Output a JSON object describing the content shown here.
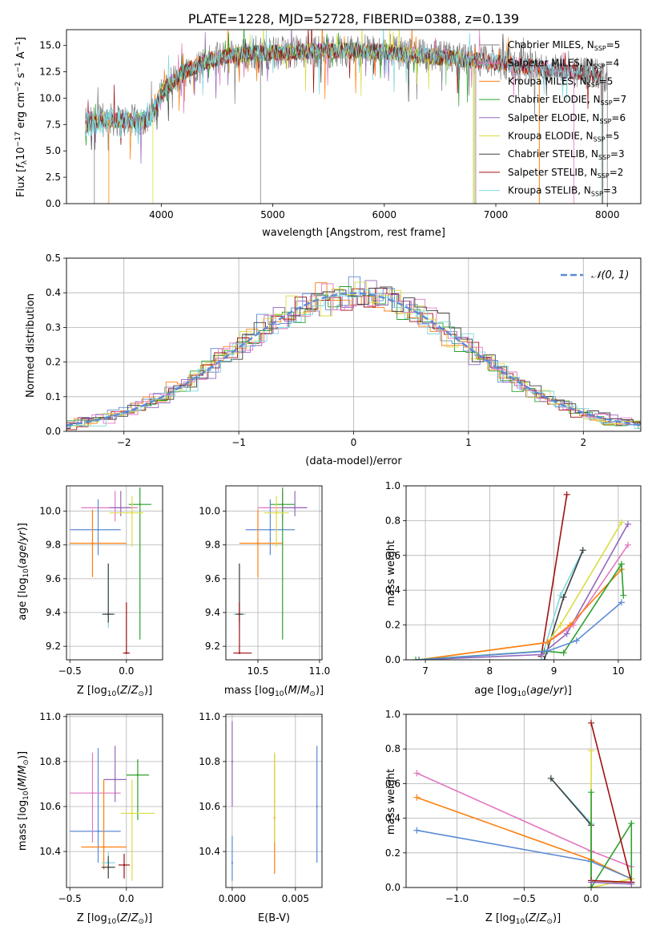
{
  "chart_data": [
    {
      "id": "spectrum",
      "type": "line",
      "title": "PLATE=1228, MJD=52728, FIBERID=0388, z=0.139",
      "xlabel": "wavelength [Angstrom, rest frame]",
      "ylabel": "Flux [f_λ10^-17 erg cm^-2 s^-1 A^-1]",
      "xlim": [
        3150,
        8300
      ],
      "ylim": [
        0,
        16.5
      ],
      "xticks": [
        4000,
        5000,
        6000,
        7000,
        8000
      ],
      "yticks": [
        0.0,
        2.5,
        5.0,
        7.5,
        10.0,
        12.5,
        15.0
      ],
      "grid": false,
      "legend_position": "upper-right",
      "series": [
        {
          "name": "Chabrier MILES, N_SSP=5",
          "color": "#808080",
          "label": {
            "pre": "Chabrier MILES, N",
            "sub": "SSP",
            "post": "=5"
          }
        },
        {
          "name": "Salpeter MILES, N_SSP=4",
          "color": "#e377c2",
          "label": {
            "pre": "Salpeter MILES, N",
            "sub": "SSP",
            "post": "=4"
          }
        },
        {
          "name": "Kroupa MILES, N_SSP=5",
          "color": "#ff7f0e",
          "label": {
            "pre": "Kroupa MILES, N",
            "sub": "SSP",
            "post": "=5"
          }
        },
        {
          "name": "Chabrier ELODIE, N_SSP=7",
          "color": "#2ca02c",
          "label": {
            "pre": "Chabrier ELODIE, N",
            "sub": "SSP",
            "post": "=7"
          }
        },
        {
          "name": "Salpeter ELODIE, N_SSP=6",
          "color": "#9467bd",
          "label": {
            "pre": "Salpeter ELODIE, N",
            "sub": "SSP",
            "post": "=6"
          }
        },
        {
          "name": "Kroupa ELODIE, N_SSP=5",
          "color": "#dbdb44",
          "label": {
            "pre": "Kroupa ELODIE, N",
            "sub": "SSP",
            "post": "=5"
          }
        },
        {
          "name": "Chabrier STELIB, N_SSP=3",
          "color": "#404040",
          "label": {
            "pre": "Chabrier STELIB, N",
            "sub": "SSP",
            "post": "=3"
          }
        },
        {
          "name": "Salpeter STELIB, N_SSP=2",
          "color": "#a01010",
          "label": {
            "pre": "Salpeter STELIB, N",
            "sub": "SSP",
            "post": "=2"
          }
        },
        {
          "name": "Kroupa STELIB, N_SSP=3",
          "color": "#7fd8e0",
          "label": {
            "pre": "Kroupa STELIB, N",
            "sub": "SSP",
            "post": "=3"
          }
        }
      ],
      "continuum": {
        "x": [
          3320,
          3500,
          3700,
          3900,
          4000,
          4200,
          4400,
          4600,
          4800,
          5000,
          5200,
          5500,
          5800,
          6000,
          6300,
          6600,
          6900,
          7200,
          7500,
          7800,
          8000
        ],
        "y": [
          7.5,
          8.0,
          7.8,
          8.0,
          10.5,
          12.5,
          13.5,
          14.0,
          14.2,
          14.3,
          14.4,
          14.5,
          14.5,
          14.4,
          14.1,
          13.8,
          13.5,
          13.1,
          12.7,
          12.3,
          12.0
        ]
      },
      "model_ends": [
        {
          "series": 0,
          "start": 3320,
          "end": 8000
        },
        {
          "series": 1,
          "start": 3320,
          "end": 7700
        },
        {
          "series": 2,
          "start": 3320,
          "end": 7390
        },
        {
          "series": 3,
          "start": 3320,
          "end": 6800
        },
        {
          "series": 4,
          "start": 3320,
          "end": 6820
        },
        {
          "series": 5,
          "start": 3320,
          "end": 6810
        },
        {
          "series": 6,
          "start": 3320,
          "end": 7960
        },
        {
          "series": 7,
          "start": 3320,
          "end": 7950
        },
        {
          "series": 8,
          "start": 4000,
          "end": 7950
        }
      ]
    },
    {
      "id": "residuals",
      "type": "histogram",
      "xlabel": "(data-model)/error",
      "ylabel": "Normed distribution",
      "xlim": [
        -2.5,
        2.5
      ],
      "ylim": [
        0,
        0.5
      ],
      "xticks": [
        -2,
        -1,
        0,
        1,
        2
      ],
      "yticks": [
        0.0,
        0.1,
        0.2,
        0.3,
        0.4,
        0.5
      ],
      "grid": true,
      "legend_position": "upper-right",
      "reference_curve": {
        "name": "N(0,1)",
        "label": "𝒩(0, 1)",
        "color": "#5b8bd5",
        "style": "dashed"
      },
      "bin_width": 0.1
    },
    {
      "id": "age-vs-Z",
      "type": "scatter",
      "xlabel": "Z [log10(Z/Z⊙)]",
      "ylabel": "age [log10(age/yr)]",
      "xlim": [
        -0.53,
        0.32
      ],
      "ylim": [
        9.12,
        10.15
      ],
      "xticks": [
        -0.5,
        0.0
      ],
      "yticks": [
        9.2,
        9.4,
        9.6,
        9.8,
        10.0
      ],
      "grid": true,
      "points": [
        {
          "x": -0.1,
          "y": 10.02,
          "xerr": [
            0.3,
            0.2
          ],
          "yerr": [
            0.08,
            0.1
          ],
          "color": "#e377c2"
        },
        {
          "x": -0.25,
          "y": 9.89,
          "xerr": [
            0.25,
            0.2
          ],
          "yerr": [
            0.15,
            0.18
          ],
          "color": "#5b8bd5"
        },
        {
          "x": -0.3,
          "y": 9.81,
          "xerr": [
            0.2,
            0.3
          ],
          "yerr": [
            0.2,
            0.2
          ],
          "color": "#ff7f0e"
        },
        {
          "x": -0.05,
          "y": 10.02,
          "xerr": [
            0.1,
            0.1
          ],
          "yerr": [
            0.05,
            0.1
          ],
          "color": "#9467bd"
        },
        {
          "x": 0.12,
          "y": 10.04,
          "xerr": [
            0.1,
            0.1
          ],
          "yerr": [
            0.8,
            0.1
          ],
          "color": "#2ca02c"
        },
        {
          "x": 0.05,
          "y": 9.99,
          "xerr": [
            0.2,
            0.1
          ],
          "yerr": [
            0.2,
            0.1
          ],
          "color": "#dbdb44"
        },
        {
          "x": -0.16,
          "y": 9.39,
          "xerr": [
            0.06,
            0.06
          ],
          "yerr": [
            0.08,
            0.3
          ],
          "color": "#7fd8e0"
        },
        {
          "x": -0.16,
          "y": 9.39,
          "xerr": [
            0.05,
            0.05
          ],
          "yerr": [
            0.05,
            0.3
          ],
          "color": "#404040"
        },
        {
          "x": 0.0,
          "y": 9.16,
          "xerr": [
            0.03,
            0.03
          ],
          "yerr": [
            0.0,
            0.3
          ],
          "color": "#a01010"
        }
      ]
    },
    {
      "id": "age-vs-mass",
      "type": "scatter",
      "xlabel": "mass [log10(M/M⊙)]",
      "ylabel": "",
      "xlim": [
        10.24,
        11.02
      ],
      "ylim": [
        9.12,
        10.15
      ],
      "xticks": [
        10.5,
        11.0
      ],
      "yticks": [
        9.2,
        9.4,
        9.6,
        9.8,
        10.0
      ],
      "grid": true,
      "points": [
        {
          "x": 10.7,
          "y": 10.02,
          "xerr": [
            0.2,
            0.2
          ],
          "yerr": [
            0.08,
            0.1
          ],
          "color": "#e377c2"
        },
        {
          "x": 10.6,
          "y": 9.89,
          "xerr": [
            0.2,
            0.2
          ],
          "yerr": [
            0.15,
            0.18
          ],
          "color": "#5b8bd5"
        },
        {
          "x": 10.5,
          "y": 9.81,
          "xerr": [
            0.15,
            0.2
          ],
          "yerr": [
            0.2,
            0.2
          ],
          "color": "#ff7f0e"
        },
        {
          "x": 10.8,
          "y": 10.02,
          "xerr": [
            0.1,
            0.1
          ],
          "yerr": [
            0.05,
            0.1
          ],
          "color": "#9467bd"
        },
        {
          "x": 10.7,
          "y": 10.04,
          "xerr": [
            0.1,
            0.1
          ],
          "yerr": [
            0.8,
            0.1
          ],
          "color": "#2ca02c"
        },
        {
          "x": 10.65,
          "y": 9.99,
          "xerr": [
            0.1,
            0.1
          ],
          "yerr": [
            0.2,
            0.1
          ],
          "color": "#dbdb44"
        },
        {
          "x": 10.35,
          "y": 9.39,
          "xerr": [
            0.05,
            0.05
          ],
          "yerr": [
            0.08,
            0.3
          ],
          "color": "#7fd8e0"
        },
        {
          "x": 10.35,
          "y": 9.39,
          "xerr": [
            0.03,
            0.03
          ],
          "yerr": [
            0.05,
            0.3
          ],
          "color": "#404040"
        },
        {
          "x": 10.35,
          "y": 9.16,
          "xerr": [
            0.05,
            0.1
          ],
          "yerr": [
            0.0,
            0.3
          ],
          "color": "#a01010"
        }
      ]
    },
    {
      "id": "massweight-vs-age",
      "type": "line",
      "xlabel": "age [log10(age/yr)]",
      "ylabel": "mass weight",
      "xlim": [
        6.7,
        10.35
      ],
      "ylim": [
        0,
        1.0
      ],
      "xticks": [
        7,
        8,
        9,
        10
      ],
      "yticks": [
        0.0,
        0.2,
        0.4,
        0.6,
        0.8,
        1.0
      ],
      "grid": true,
      "series": [
        {
          "color": "#a01010",
          "x": [
            8.8,
            9.2
          ],
          "y": [
            0.02,
            0.95
          ]
        },
        {
          "color": "#7fd8e0",
          "x": [
            8.8,
            9.1,
            9.45
          ],
          "y": [
            0.0,
            0.37,
            0.63
          ]
        },
        {
          "color": "#404040",
          "x": [
            8.85,
            9.15,
            9.45
          ],
          "y": [
            0.0,
            0.36,
            0.63
          ]
        },
        {
          "color": "#9467bd",
          "x": [
            6.9,
            8.8,
            9.2,
            10.15
          ],
          "y": [
            0.0,
            0.03,
            0.15,
            0.78
          ]
        },
        {
          "color": "#e377c2",
          "x": [
            6.9,
            8.9,
            9.3,
            10.15
          ],
          "y": [
            0.0,
            0.1,
            0.2,
            0.66
          ]
        },
        {
          "color": "#dbdb44",
          "x": [
            6.9,
            8.9,
            9.1,
            10.05
          ],
          "y": [
            0.0,
            0.1,
            0.2,
            0.79
          ]
        },
        {
          "color": "#ff7f0e",
          "x": [
            6.9,
            8.9,
            9.25,
            10.05
          ],
          "y": [
            0.0,
            0.1,
            0.2,
            0.52
          ]
        },
        {
          "color": "#2ca02c",
          "x": [
            6.85,
            8.85,
            9.15,
            10.05,
            10.08
          ],
          "y": [
            0.0,
            0.05,
            0.04,
            0.55,
            0.37
          ]
        },
        {
          "color": "#5b8bd5",
          "x": [
            6.9,
            8.9,
            9.35,
            10.05
          ],
          "y": [
            0.0,
            0.05,
            0.11,
            0.33
          ]
        }
      ]
    },
    {
      "id": "mass-vs-Z",
      "type": "scatter",
      "xlabel": "Z [log10(Z/Z⊙)]",
      "ylabel": "mass [log10(M/M⊙)]",
      "xlim": [
        -0.53,
        0.32
      ],
      "ylim": [
        10.24,
        11.01
      ],
      "xticks": [
        -0.5,
        0.0
      ],
      "yticks": [
        10.4,
        10.6,
        10.8,
        11.0
      ],
      "grid": true,
      "points": [
        {
          "x": -0.25,
          "y": 10.49,
          "xerr": [
            0.25,
            0.2
          ],
          "yerr": [
            0.14,
            0.37
          ],
          "color": "#5b8bd5"
        },
        {
          "x": -0.3,
          "y": 10.66,
          "xerr": [
            0.2,
            0.25
          ],
          "yerr": [
            0.22,
            0.18
          ],
          "color": "#e377c2"
        },
        {
          "x": -0.2,
          "y": 10.42,
          "xerr": [
            0.2,
            0.2
          ],
          "yerr": [
            0.1,
            0.3
          ],
          "color": "#ff7f0e"
        },
        {
          "x": -0.1,
          "y": 10.72,
          "xerr": [
            0.1,
            0.1
          ],
          "yerr": [
            0.1,
            0.15
          ],
          "color": "#9467bd"
        },
        {
          "x": 0.1,
          "y": 10.74,
          "xerr": [
            0.1,
            0.1
          ],
          "yerr": [
            0.2,
            0.07
          ],
          "color": "#2ca02c"
        },
        {
          "x": 0.05,
          "y": 10.57,
          "xerr": [
            0.1,
            0.2
          ],
          "yerr": [
            0.3,
            0.15
          ],
          "color": "#dbdb44"
        },
        {
          "x": -0.16,
          "y": 10.35,
          "xerr": [
            0.06,
            0.06
          ],
          "yerr": [
            0.05,
            0.05
          ],
          "color": "#7fd8e0"
        },
        {
          "x": -0.16,
          "y": 10.33,
          "xerr": [
            0.06,
            0.06
          ],
          "yerr": [
            0.05,
            0.05
          ],
          "color": "#404040"
        },
        {
          "x": -0.02,
          "y": 10.34,
          "xerr": [
            0.05,
            0.05
          ],
          "yerr": [
            0.06,
            0.05
          ],
          "color": "#a01010"
        }
      ]
    },
    {
      "id": "mass-vs-EBV",
      "type": "scatter",
      "xlabel": "E(B-V)",
      "ylabel": "",
      "xlim": [
        -0.0005,
        0.0071
      ],
      "ylim": [
        10.24,
        11.01
      ],
      "xticks": [
        0.0,
        0.005
      ],
      "xticklabels": [
        "0.000",
        "0.005"
      ],
      "yticks": [
        10.4,
        10.6,
        10.8,
        11.0
      ],
      "grid": true,
      "points": [
        {
          "x": 0.0,
          "y": 10.8,
          "yerr": [
            0.2,
            0.18
          ],
          "color": "#9467bd"
        },
        {
          "x": 0.0,
          "y": 10.35,
          "yerr": [
            0.08,
            0.12
          ],
          "color": "#5b8bd5"
        },
        {
          "x": 0.00335,
          "y": 10.55,
          "yerr": [
            0.25,
            0.28
          ],
          "color": "#ff7f0e"
        },
        {
          "x": 0.00335,
          "y": 10.62,
          "yerr": [
            0.18,
            0.22
          ],
          "color": "#dbdb44"
        },
        {
          "x": 0.0067,
          "y": 10.6,
          "yerr": [
            0.25,
            0.27
          ],
          "color": "#5b8bd5"
        }
      ]
    },
    {
      "id": "massweight-vs-Z",
      "type": "line",
      "xlabel": "Z [log10(Z/Z⊙)]",
      "ylabel": "mass weight",
      "xlim": [
        -1.38,
        0.37
      ],
      "ylim": [
        0,
        1.0
      ],
      "xticks": [
        -1.0,
        -0.5,
        0.0
      ],
      "yticks": [
        0.0,
        0.2,
        0.4,
        0.6,
        0.8,
        1.0
      ],
      "grid": true,
      "series": [
        {
          "color": "#e377c2",
          "x": [
            -1.3,
            0.0,
            0.3
          ],
          "y": [
            0.66,
            0.21,
            0.12
          ]
        },
        {
          "color": "#ff7f0e",
          "x": [
            -1.3,
            0.0,
            0.3
          ],
          "y": [
            0.52,
            0.16,
            0.05
          ]
        },
        {
          "color": "#5b8bd5",
          "x": [
            -1.3,
            0.0,
            0.3
          ],
          "y": [
            0.33,
            0.15,
            0.05
          ]
        },
        {
          "color": "#7fd8e0",
          "x": [
            -0.3,
            0.0,
            0.0
          ],
          "y": [
            0.63,
            0.37,
            0.0
          ]
        },
        {
          "color": "#404040",
          "x": [
            -0.3,
            0.0,
            0.0
          ],
          "y": [
            0.63,
            0.36,
            0.0
          ]
        },
        {
          "color": "#dbdb44",
          "x": [
            0.0,
            0.0,
            0.3
          ],
          "y": [
            0.79,
            0.0,
            0.05
          ]
        },
        {
          "color": "#2ca02c",
          "x": [
            0.0,
            0.0,
            0.3,
            0.3
          ],
          "y": [
            0.55,
            0.0,
            0.37,
            0.03
          ]
        },
        {
          "color": "#a01010",
          "x": [
            0.0,
            0.3,
            0.0
          ],
          "y": [
            0.95,
            0.03,
            0.04
          ]
        },
        {
          "color": "#9467bd",
          "x": [
            0.0,
            0.3
          ],
          "y": [
            0.03,
            0.02
          ]
        }
      ]
    }
  ]
}
